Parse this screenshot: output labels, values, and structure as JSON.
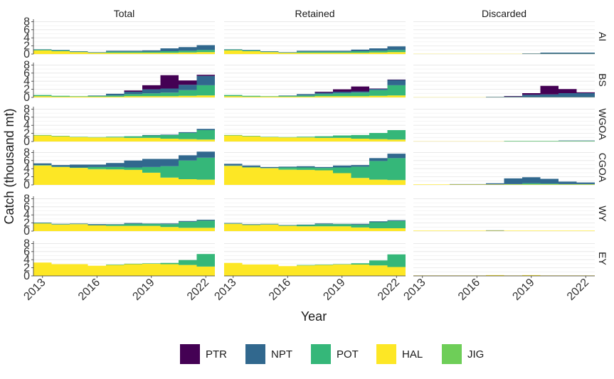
{
  "chart_data": {
    "type": "area",
    "chart_style": "stepped stacked area, faceted grid",
    "xlabel": "Year",
    "ylabel": "Catch (thousand mt)",
    "x": [
      2013,
      2014,
      2015,
      2016,
      2017,
      2018,
      2019,
      2020,
      2021,
      2022
    ],
    "x_ticks": [
      "2013",
      "2016",
      "2019",
      "2022"
    ],
    "x_tick_values": [
      2013,
      2016,
      2019,
      2022
    ],
    "y_ticks": [
      "0",
      "2",
      "4",
      "6",
      "8"
    ],
    "y_tick_values": [
      0,
      2,
      4,
      6,
      8
    ],
    "ylim": [
      0,
      8.6
    ],
    "grid": true,
    "legend_position": "bottom",
    "columns": [
      "Total",
      "Retained",
      "Discarded"
    ],
    "rows": [
      "AI",
      "BS",
      "WGOA",
      "CGOA",
      "WY",
      "EY"
    ],
    "series_order": [
      "PTR",
      "NPT",
      "POT",
      "HAL",
      "JIG"
    ],
    "stack_order": [
      "HAL",
      "JIG",
      "POT",
      "NPT",
      "PTR"
    ],
    "colors": {
      "PTR": "#440154",
      "NPT": "#31688e",
      "POT": "#35b779",
      "HAL": "#fde725",
      "JIG": "#6ece58"
    },
    "panels": {
      "Total": {
        "AI": {
          "HAL": [
            0.9,
            0.7,
            0.5,
            0.3,
            0.3,
            0.3,
            0.3,
            0.3,
            0.4,
            0.5
          ],
          "JIG": [
            0,
            0,
            0,
            0,
            0,
            0,
            0,
            0,
            0,
            0
          ],
          "POT": [
            0.2,
            0.2,
            0.1,
            0.1,
            0.3,
            0.3,
            0.3,
            0.4,
            0.4,
            0.5
          ],
          "NPT": [
            0.1,
            0.1,
            0.1,
            0.1,
            0.2,
            0.2,
            0.3,
            0.7,
            0.9,
            1.2
          ],
          "PTR": [
            0,
            0,
            0,
            0,
            0,
            0,
            0,
            0,
            0,
            0
          ]
        },
        "BS": {
          "HAL": [
            0.3,
            0.2,
            0.2,
            0.2,
            0.2,
            0.3,
            0.3,
            0.3,
            0.4,
            0.5
          ],
          "JIG": [
            0,
            0,
            0,
            0,
            0,
            0,
            0,
            0,
            0,
            0
          ],
          "POT": [
            0.3,
            0.2,
            0.1,
            0.2,
            0.3,
            0.5,
            0.7,
            0.9,
            1.4,
            2.5
          ],
          "NPT": [
            0,
            0,
            0,
            0.1,
            0.4,
            0.6,
            1.0,
            1.0,
            1.3,
            2.3
          ],
          "PTR": [
            0,
            0,
            0,
            0,
            0,
            0.3,
            1.0,
            3.3,
            1.1,
            0.3
          ]
        },
        "WGOA": {
          "HAL": [
            1.5,
            1.3,
            1.1,
            1.0,
            1.0,
            0.9,
            0.9,
            0.7,
            0.6,
            0.5
          ],
          "JIG": [
            0,
            0,
            0,
            0,
            0,
            0,
            0,
            0,
            0,
            0
          ],
          "POT": [
            0.1,
            0.1,
            0.1,
            0.1,
            0.2,
            0.4,
            0.6,
            0.9,
            1.5,
            2.3
          ],
          "NPT": [
            0,
            0,
            0,
            0,
            0,
            0,
            0.1,
            0.1,
            0.2,
            0.3
          ],
          "PTR": [
            0,
            0,
            0,
            0,
            0,
            0,
            0,
            0,
            0,
            0
          ]
        },
        "CGOA": {
          "HAL": [
            4.8,
            4.4,
            4.2,
            3.8,
            3.8,
            3.7,
            3.0,
            1.8,
            1.4,
            1.3
          ],
          "JIG": [
            0,
            0,
            0,
            0.2,
            0,
            0,
            0,
            0,
            0,
            0
          ],
          "POT": [
            0.1,
            0.1,
            0.1,
            0.4,
            0.6,
            0.6,
            1.4,
            2.8,
            4.6,
            5.4
          ],
          "NPT": [
            0.4,
            0.4,
            0.7,
            0.6,
            1.0,
            1.7,
            2.0,
            1.8,
            1.3,
            1.5
          ],
          "PTR": [
            0,
            0,
            0,
            0,
            0,
            0,
            0,
            0,
            0,
            0
          ]
        },
        "WY": {
          "HAL": [
            1.9,
            1.6,
            1.7,
            1.4,
            1.3,
            1.3,
            1.3,
            1.0,
            0.8,
            0.8
          ],
          "JIG": [
            0,
            0,
            0,
            0,
            0,
            0,
            0,
            0,
            0,
            0
          ],
          "POT": [
            0.1,
            0.1,
            0.1,
            0.1,
            0.3,
            0.5,
            0.5,
            0.7,
            1.5,
            1.8
          ],
          "NPT": [
            0.1,
            0.1,
            0.1,
            0.2,
            0.1,
            0.2,
            0.1,
            0.2,
            0.2,
            0.2
          ],
          "PTR": [
            0,
            0,
            0,
            0,
            0,
            0,
            0,
            0,
            0,
            0
          ]
        },
        "EY": {
          "HAL": [
            3.3,
            2.9,
            2.9,
            2.5,
            2.7,
            2.9,
            3.0,
            2.9,
            2.7,
            2.3
          ],
          "JIG": [
            0,
            0,
            0,
            0,
            0,
            0,
            0,
            0,
            0,
            0
          ],
          "POT": [
            0,
            0,
            0,
            0,
            0.1,
            0.1,
            0.1,
            0.3,
            1.2,
            3.1
          ],
          "NPT": [
            0,
            0,
            0,
            0,
            0,
            0,
            0,
            0,
            0,
            0
          ],
          "PTR": [
            0,
            0,
            0,
            0,
            0,
            0,
            0,
            0,
            0,
            0
          ]
        }
      },
      "Retained": {
        "AI": {
          "HAL": [
            0.9,
            0.7,
            0.5,
            0.3,
            0.3,
            0.3,
            0.3,
            0.3,
            0.4,
            0.5
          ],
          "JIG": [
            0,
            0,
            0,
            0,
            0,
            0,
            0,
            0,
            0,
            0
          ],
          "POT": [
            0.2,
            0.2,
            0.1,
            0.1,
            0.3,
            0.3,
            0.3,
            0.4,
            0.4,
            0.5
          ],
          "NPT": [
            0.1,
            0.1,
            0.1,
            0.1,
            0.2,
            0.2,
            0.2,
            0.4,
            0.6,
            0.9
          ],
          "PTR": [
            0,
            0,
            0,
            0,
            0,
            0,
            0,
            0,
            0,
            0
          ]
        },
        "BS": {
          "HAL": [
            0.3,
            0.2,
            0.2,
            0.2,
            0.2,
            0.3,
            0.3,
            0.3,
            0.4,
            0.5
          ],
          "JIG": [
            0,
            0,
            0,
            0,
            0,
            0,
            0,
            0,
            0,
            0
          ],
          "POT": [
            0.3,
            0.2,
            0.1,
            0.2,
            0.3,
            0.5,
            0.7,
            0.9,
            1.4,
            2.5
          ],
          "NPT": [
            0,
            0,
            0,
            0.1,
            0.3,
            0.4,
            0.4,
            0.3,
            0.3,
            1.3
          ],
          "PTR": [
            0,
            0,
            0,
            0,
            0,
            0.2,
            0.6,
            1.2,
            0.1,
            0.1
          ]
        },
        "WGOA": {
          "HAL": [
            1.5,
            1.3,
            1.1,
            1.0,
            1.0,
            0.9,
            0.9,
            0.7,
            0.6,
            0.5
          ],
          "JIG": [
            0,
            0,
            0,
            0,
            0,
            0,
            0,
            0,
            0,
            0
          ],
          "POT": [
            0.1,
            0.1,
            0.1,
            0.1,
            0.2,
            0.4,
            0.6,
            0.9,
            1.5,
            2.3
          ],
          "NPT": [
            0,
            0,
            0,
            0,
            0,
            0,
            0,
            0,
            0,
            0
          ],
          "PTR": [
            0,
            0,
            0,
            0,
            0,
            0,
            0,
            0,
            0,
            0
          ]
        },
        "CGOA": {
          "HAL": [
            4.7,
            4.3,
            4.1,
            3.7,
            3.7,
            3.6,
            2.9,
            1.7,
            1.3,
            1.2
          ],
          "JIG": [
            0,
            0,
            0,
            0.2,
            0,
            0,
            0,
            0,
            0,
            0
          ],
          "POT": [
            0.1,
            0.1,
            0.1,
            0.4,
            0.6,
            0.6,
            1.4,
            2.8,
            4.6,
            5.4
          ],
          "NPT": [
            0.4,
            0.4,
            0.2,
            0.2,
            0.3,
            0.2,
            0.5,
            0.4,
            0.7,
            1.1
          ],
          "PTR": [
            0,
            0,
            0,
            0,
            0,
            0,
            0,
            0,
            0,
            0
          ]
        },
        "WY": {
          "HAL": [
            1.8,
            1.5,
            1.6,
            1.3,
            1.2,
            1.2,
            1.2,
            0.9,
            0.7,
            0.7
          ],
          "JIG": [
            0,
            0,
            0,
            0,
            0,
            0,
            0,
            0,
            0,
            0
          ],
          "POT": [
            0.1,
            0.1,
            0.1,
            0.1,
            0.3,
            0.5,
            0.5,
            0.7,
            1.5,
            1.8
          ],
          "NPT": [
            0.1,
            0.1,
            0.1,
            0.1,
            0.1,
            0.2,
            0.1,
            0.2,
            0.2,
            0.2
          ],
          "PTR": [
            0,
            0,
            0,
            0,
            0,
            0,
            0,
            0,
            0,
            0
          ]
        },
        "EY": {
          "HAL": [
            3.2,
            2.8,
            2.8,
            2.4,
            2.6,
            2.7,
            2.8,
            2.8,
            2.6,
            2.2
          ],
          "JIG": [
            0,
            0,
            0,
            0,
            0,
            0,
            0,
            0,
            0,
            0
          ],
          "POT": [
            0,
            0,
            0,
            0,
            0.1,
            0.1,
            0.1,
            0.3,
            1.2,
            3.1
          ],
          "NPT": [
            0,
            0,
            0,
            0,
            0,
            0,
            0,
            0,
            0,
            0
          ],
          "PTR": [
            0,
            0,
            0,
            0,
            0,
            0,
            0,
            0,
            0,
            0
          ]
        }
      },
      "Discarded": {
        "AI": {
          "HAL": [
            0.05,
            0.05,
            0.05,
            0.05,
            0.05,
            0.05,
            0.05,
            0.05,
            0.05,
            0.05
          ],
          "JIG": [
            0,
            0,
            0,
            0,
            0,
            0,
            0,
            0,
            0,
            0
          ],
          "POT": [
            0,
            0,
            0,
            0,
            0,
            0,
            0,
            0,
            0,
            0
          ],
          "NPT": [
            0,
            0,
            0,
            0,
            0,
            0,
            0.1,
            0.3,
            0.3,
            0.3
          ],
          "PTR": [
            0,
            0,
            0,
            0,
            0,
            0,
            0,
            0,
            0,
            0
          ]
        },
        "BS": {
          "HAL": [
            0.05,
            0.05,
            0.05,
            0.05,
            0.05,
            0.05,
            0.05,
            0.05,
            0.05,
            0.05
          ],
          "JIG": [
            0,
            0,
            0,
            0,
            0,
            0,
            0,
            0,
            0,
            0
          ],
          "POT": [
            0,
            0,
            0,
            0,
            0,
            0,
            0,
            0,
            0,
            0
          ],
          "NPT": [
            0,
            0,
            0,
            0,
            0.1,
            0.2,
            0.6,
            0.7,
            1.0,
            1.0
          ],
          "PTR": [
            0,
            0,
            0,
            0,
            0,
            0.1,
            0.4,
            2.1,
            1.0,
            0.2
          ]
        },
        "WGOA": {
          "HAL": [
            0.05,
            0.05,
            0.05,
            0.05,
            0.05,
            0.05,
            0.05,
            0.05,
            0.05,
            0.05
          ],
          "JIG": [
            0,
            0,
            0,
            0,
            0,
            0,
            0,
            0,
            0,
            0
          ],
          "POT": [
            0,
            0,
            0,
            0,
            0,
            0.1,
            0.1,
            0.1,
            0.1,
            0.1
          ],
          "NPT": [
            0,
            0,
            0,
            0,
            0,
            0,
            0,
            0,
            0.1,
            0.1
          ],
          "PTR": [
            0,
            0,
            0,
            0,
            0,
            0,
            0,
            0,
            0,
            0
          ]
        },
        "CGOA": {
          "HAL": [
            0.1,
            0.1,
            0.1,
            0.1,
            0.1,
            0.1,
            0.1,
            0.1,
            0.1,
            0.1
          ],
          "JIG": [
            0,
            0,
            0,
            0,
            0,
            0,
            0,
            0,
            0,
            0
          ],
          "POT": [
            0,
            0,
            0,
            0,
            0,
            0.1,
            0.3,
            0.2,
            0.1,
            0.1
          ],
          "NPT": [
            0,
            0,
            0.1,
            0.1,
            0.3,
            1.4,
            1.5,
            1.2,
            0.6,
            0.4
          ],
          "PTR": [
            0,
            0,
            0,
            0,
            0,
            0,
            0,
            0,
            0,
            0
          ]
        },
        "WY": {
          "HAL": [
            0.1,
            0.1,
            0.1,
            0.1,
            0.1,
            0.1,
            0.1,
            0.1,
            0.1,
            0.1
          ],
          "JIG": [
            0,
            0,
            0,
            0,
            0,
            0,
            0,
            0,
            0,
            0
          ],
          "POT": [
            0,
            0,
            0,
            0,
            0,
            0,
            0,
            0,
            0,
            0
          ],
          "NPT": [
            0,
            0,
            0,
            0,
            0.1,
            0,
            0,
            0,
            0,
            0
          ],
          "PTR": [
            0,
            0,
            0,
            0,
            0,
            0,
            0,
            0,
            0,
            0
          ]
        },
        "EY": {
          "HAL": [
            0.1,
            0.1,
            0.1,
            0.1,
            0.2,
            0.1,
            0.2,
            0.1,
            0.1,
            0.1
          ],
          "JIG": [
            0,
            0,
            0,
            0,
            0,
            0,
            0,
            0,
            0,
            0
          ],
          "POT": [
            0,
            0,
            0,
            0,
            0,
            0,
            0,
            0,
            0,
            0
          ],
          "NPT": [
            0,
            0,
            0,
            0,
            0,
            0,
            0,
            0,
            0,
            0
          ],
          "PTR": [
            0,
            0,
            0,
            0,
            0,
            0,
            0,
            0,
            0,
            0
          ]
        }
      }
    }
  }
}
